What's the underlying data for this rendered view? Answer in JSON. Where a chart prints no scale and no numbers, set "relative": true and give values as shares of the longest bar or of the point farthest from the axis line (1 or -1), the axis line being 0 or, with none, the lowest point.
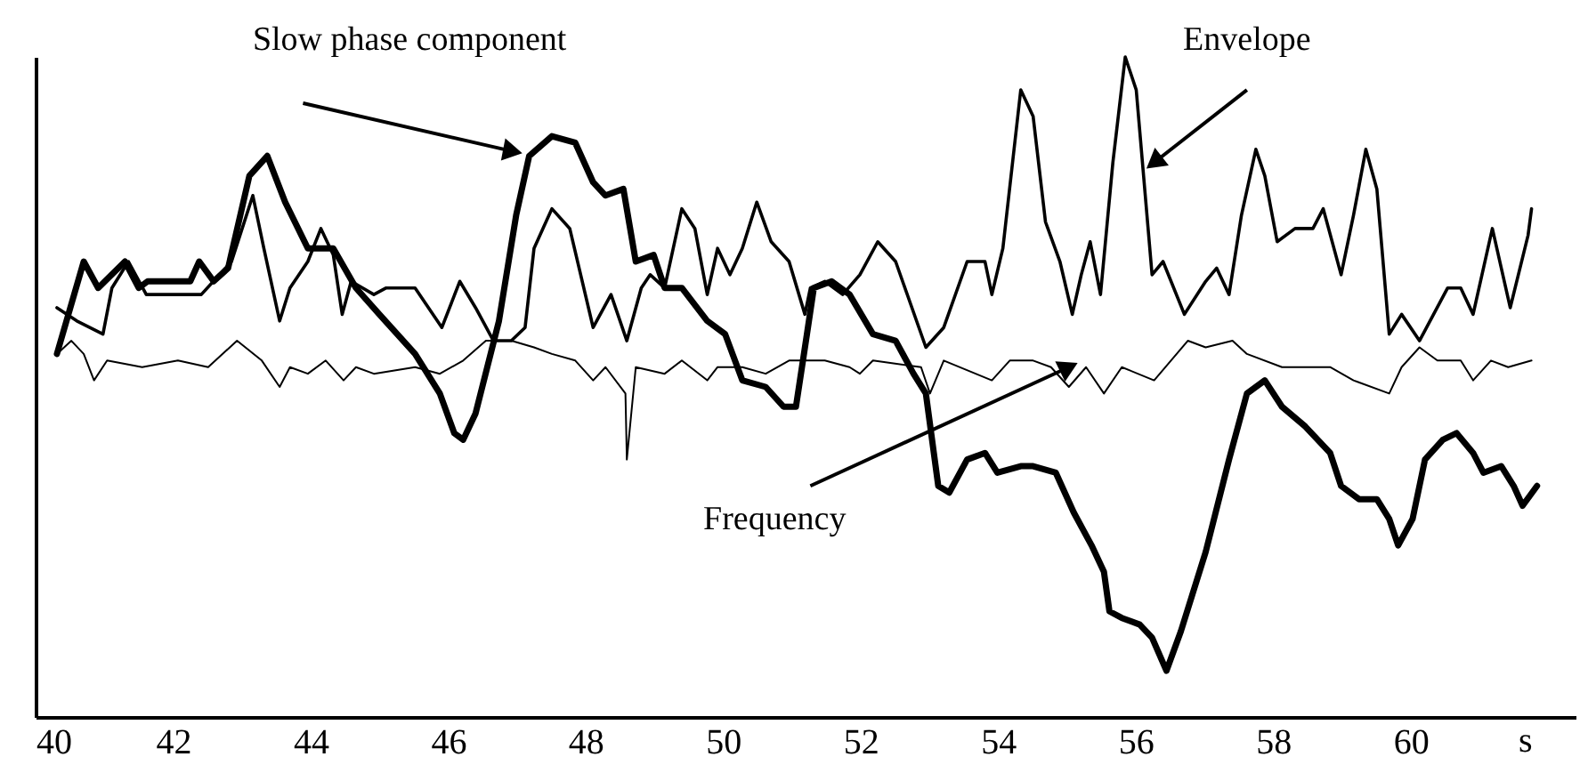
{
  "chart_data": {
    "type": "line",
    "relative": true,
    "xlabel": "s",
    "xlim": [
      40,
      62.4
    ],
    "xticks": [
      40,
      42,
      44,
      46,
      48,
      50,
      52,
      54,
      56,
      58,
      60
    ],
    "legend": false,
    "grid": false,
    "marker": "none",
    "line_style": "solid",
    "series": [
      {
        "name": "Slow phase component",
        "color": "#000000",
        "x": [
          40.31,
          40.7,
          40.91,
          41.3,
          41.5,
          41.63,
          42.25,
          42.38,
          42.59,
          42.8,
          43.11,
          43.37,
          43.63,
          43.96,
          44.33,
          44.66,
          45.0,
          45.52,
          45.88,
          46.09,
          46.22,
          46.4,
          46.74,
          46.99,
          47.18,
          47.51,
          47.85,
          48.11,
          48.29,
          48.55,
          48.73,
          48.99,
          49.15,
          49.4,
          49.77,
          50.03,
          50.28,
          50.62,
          50.88,
          51.06,
          51.22,
          51.32,
          51.58,
          51.84,
          52.18,
          52.51,
          52.77,
          52.95,
          53.13,
          53.29,
          53.55,
          53.81,
          53.99,
          54.33,
          54.51,
          54.84,
          55.1,
          55.36,
          55.54,
          55.62,
          55.8,
          56.06,
          56.24,
          56.45,
          56.66,
          57.02,
          57.36,
          57.62,
          57.88,
          58.13,
          58.47,
          58.83,
          58.99,
          59.25,
          59.51,
          59.69,
          59.82,
          60.03,
          60.21,
          60.47,
          60.67,
          60.91,
          61.06,
          61.32,
          61.5,
          61.63,
          61.84
        ],
        "values": [
          0.55,
          0.69,
          0.65,
          0.69,
          0.65,
          0.66,
          0.66,
          0.69,
          0.66,
          0.68,
          0.82,
          0.85,
          0.78,
          0.71,
          0.71,
          0.65,
          0.61,
          0.55,
          0.49,
          0.43,
          0.42,
          0.46,
          0.6,
          0.76,
          0.85,
          0.88,
          0.87,
          0.81,
          0.79,
          0.8,
          0.69,
          0.7,
          0.65,
          0.65,
          0.6,
          0.58,
          0.51,
          0.5,
          0.47,
          0.47,
          0.58,
          0.65,
          0.66,
          0.64,
          0.58,
          0.57,
          0.52,
          0.49,
          0.35,
          0.34,
          0.39,
          0.4,
          0.37,
          0.38,
          0.38,
          0.37,
          0.31,
          0.26,
          0.22,
          0.16,
          0.15,
          0.14,
          0.12,
          0.07,
          0.13,
          0.25,
          0.39,
          0.49,
          0.51,
          0.47,
          0.44,
          0.4,
          0.35,
          0.33,
          0.33,
          0.3,
          0.26,
          0.3,
          0.39,
          0.42,
          0.43,
          0.4,
          0.37,
          0.38,
          0.35,
          0.32,
          0.35
        ]
      },
      {
        "name": "Envelope",
        "color": "#000000",
        "x": [
          40.31,
          40.6,
          40.98,
          41.11,
          41.35,
          41.61,
          42.41,
          42.85,
          43.16,
          43.32,
          43.55,
          43.7,
          43.96,
          44.15,
          44.33,
          44.46,
          44.59,
          44.92,
          45.1,
          45.52,
          45.91,
          46.17,
          46.4,
          46.66,
          46.92,
          47.12,
          47.25,
          47.51,
          47.77,
          48.11,
          48.37,
          48.6,
          48.81,
          48.94,
          49.15,
          49.4,
          49.59,
          49.77,
          49.92,
          50.1,
          50.28,
          50.49,
          50.7,
          50.96,
          51.19,
          51.27,
          51.48,
          51.74,
          51.99,
          52.25,
          52.51,
          52.95,
          53.21,
          53.55,
          53.81,
          53.91,
          54.07,
          54.33,
          54.51,
          54.69,
          54.9,
          55.08,
          55.21,
          55.34,
          55.49,
          55.67,
          55.85,
          56.01,
          56.24,
          56.4,
          56.71,
          57.02,
          57.18,
          57.36,
          57.54,
          57.75,
          57.88,
          58.06,
          58.32,
          58.58,
          58.73,
          58.99,
          59.17,
          59.35,
          59.51,
          59.69,
          59.87,
          60.13,
          60.54,
          60.73,
          60.91,
          61.19,
          61.45,
          61.71,
          61.76
        ],
        "values": [
          0.62,
          0.6,
          0.58,
          0.65,
          0.69,
          0.64,
          0.64,
          0.69,
          0.79,
          0.71,
          0.6,
          0.65,
          0.69,
          0.74,
          0.7,
          0.61,
          0.66,
          0.64,
          0.65,
          0.65,
          0.59,
          0.66,
          0.62,
          0.57,
          0.57,
          0.59,
          0.71,
          0.77,
          0.74,
          0.59,
          0.64,
          0.57,
          0.65,
          0.67,
          0.65,
          0.77,
          0.74,
          0.64,
          0.71,
          0.67,
          0.71,
          0.78,
          0.72,
          0.69,
          0.61,
          0.65,
          0.66,
          0.64,
          0.67,
          0.72,
          0.69,
          0.56,
          0.59,
          0.69,
          0.69,
          0.64,
          0.71,
          0.95,
          0.91,
          0.75,
          0.69,
          0.61,
          0.67,
          0.72,
          0.64,
          0.84,
          1,
          0.95,
          0.67,
          0.69,
          0.61,
          0.66,
          0.68,
          0.64,
          0.76,
          0.86,
          0.82,
          0.72,
          0.74,
          0.74,
          0.77,
          0.67,
          0.76,
          0.86,
          0.8,
          0.58,
          0.61,
          0.57,
          0.65,
          0.65,
          0.61,
          0.74,
          0.62,
          0.73,
          0.77
        ]
      },
      {
        "name": "Frequency",
        "color": "#000000",
        "x": [
          40.31,
          40.52,
          40.7,
          40.85,
          41.04,
          41.55,
          42.07,
          42.51,
          42.93,
          43.29,
          43.55,
          43.7,
          43.96,
          44.22,
          44.48,
          44.66,
          44.92,
          45.52,
          45.88,
          46.22,
          46.55,
          46.92,
          47.25,
          47.51,
          47.85,
          48.11,
          48.29,
          48.58,
          48.6,
          48.73,
          49.15,
          49.4,
          49.77,
          49.92,
          50.28,
          50.62,
          50.96,
          51.22,
          51.48,
          51.84,
          51.99,
          52.18,
          52.88,
          53.01,
          53.21,
          53.91,
          54.17,
          54.51,
          54.77,
          55.03,
          55.28,
          55.54,
          55.8,
          56.27,
          56.76,
          57.02,
          57.41,
          57.62,
          58.13,
          58.83,
          59.17,
          59.69,
          59.87,
          60.13,
          60.39,
          60.73,
          60.91,
          61.17,
          61.42,
          61.76
        ],
        "values": [
          0.55,
          0.57,
          0.55,
          0.51,
          0.54,
          0.53,
          0.54,
          0.53,
          0.57,
          0.54,
          0.5,
          0.53,
          0.52,
          0.54,
          0.51,
          0.53,
          0.52,
          0.53,
          0.52,
          0.54,
          0.57,
          0.57,
          0.56,
          0.55,
          0.54,
          0.51,
          0.53,
          0.49,
          0.39,
          0.53,
          0.52,
          0.54,
          0.51,
          0.53,
          0.53,
          0.52,
          0.54,
          0.54,
          0.54,
          0.53,
          0.52,
          0.54,
          0.53,
          0.49,
          0.54,
          0.51,
          0.54,
          0.54,
          0.53,
          0.5,
          0.53,
          0.49,
          0.53,
          0.51,
          0.57,
          0.56,
          0.57,
          0.55,
          0.53,
          0.53,
          0.51,
          0.49,
          0.53,
          0.56,
          0.54,
          0.54,
          0.51,
          0.54,
          0.53,
          0.54
        ]
      }
    ]
  }
}
